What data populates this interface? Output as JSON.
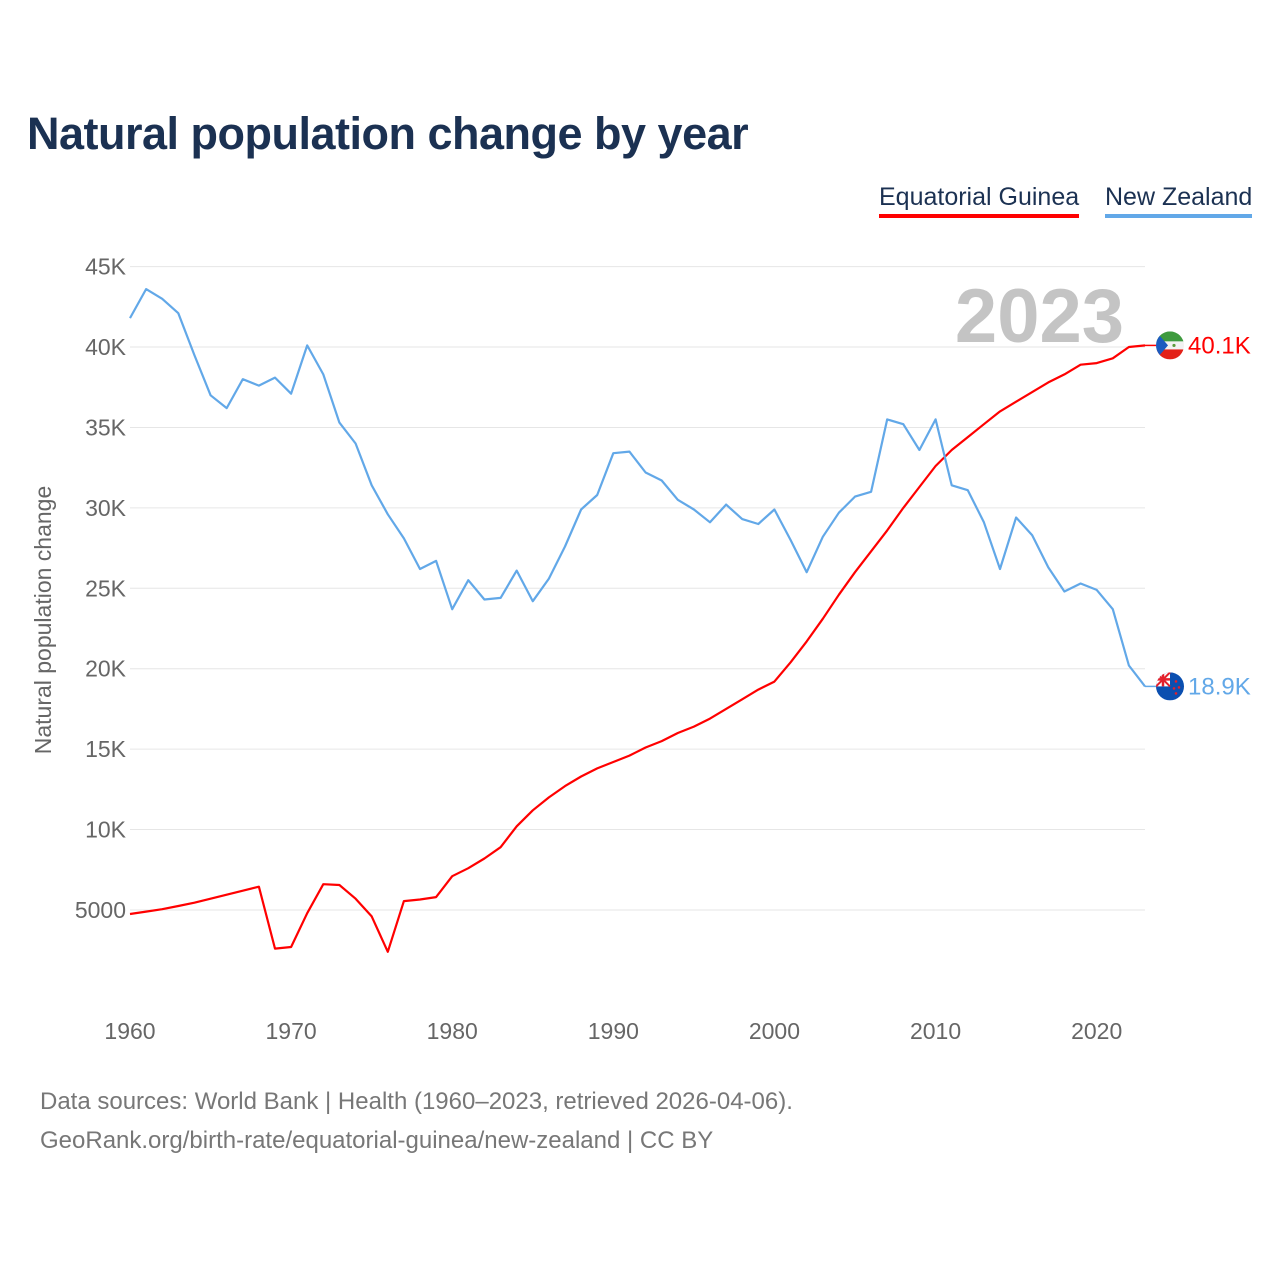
{
  "title": "Natural population change by year",
  "footer": {
    "line1": "Data sources: World Bank | Health (1960–2023, retrieved 2026-04-06).",
    "line2": "GeoRank.org/birth-rate/equatorial-guinea/new-zealand | CC BY"
  },
  "chart_data": {
    "type": "line",
    "title": "Natural population change by year",
    "xlabel": "",
    "ylabel": "Natural population change",
    "xlim": [
      1960,
      2023
    ],
    "ylim": [
      0,
      45000
    ],
    "grid": true,
    "legend_position": "top-right",
    "year_label": "2023",
    "x_ticks": [
      1960,
      1970,
      1980,
      1990,
      2000,
      2010,
      2020
    ],
    "x_tick_labels": [
      "1960",
      "1970",
      "1980",
      "1990",
      "2000",
      "2010",
      "2020"
    ],
    "y_ticks": [
      5000,
      10000,
      15000,
      20000,
      25000,
      30000,
      35000,
      40000,
      45000
    ],
    "y_tick_labels": [
      "5000",
      "10K",
      "15K",
      "20K",
      "25K",
      "30K",
      "35K",
      "40K",
      "45K"
    ],
    "x": [
      1960,
      1961,
      1962,
      1963,
      1964,
      1965,
      1966,
      1967,
      1968,
      1969,
      1970,
      1971,
      1972,
      1973,
      1974,
      1975,
      1976,
      1977,
      1978,
      1979,
      1980,
      1981,
      1982,
      1983,
      1984,
      1985,
      1986,
      1987,
      1988,
      1989,
      1990,
      1991,
      1992,
      1993,
      1994,
      1995,
      1996,
      1997,
      1998,
      1999,
      2000,
      2001,
      2002,
      2003,
      2004,
      2005,
      2006,
      2007,
      2008,
      2009,
      2010,
      2011,
      2012,
      2013,
      2014,
      2015,
      2016,
      2017,
      2018,
      2019,
      2020,
      2021,
      2022,
      2023
    ],
    "series": [
      {
        "name": "Equatorial Guinea",
        "color": "#ff0000",
        "end_label": "40.1K",
        "flag": "equatorial-guinea-flag",
        "values": [
          4750,
          4900,
          5050,
          5250,
          5450,
          5700,
          5950,
          6200,
          6450,
          2600,
          2700,
          4800,
          6600,
          6550,
          5700,
          4600,
          2400,
          5550,
          5650,
          5800,
          7100,
          7600,
          8200,
          8900,
          10200,
          11200,
          12000,
          12700,
          13300,
          13800,
          14200,
          14600,
          15100,
          15500,
          16000,
          16400,
          16900,
          17500,
          18100,
          18700,
          19200,
          20400,
          21700,
          23100,
          24600,
          26000,
          27300,
          28600,
          30000,
          31300,
          32600,
          33600,
          34400,
          35200,
          36000,
          36600,
          37200,
          37800,
          38300,
          38900,
          39000,
          39300,
          40000,
          40100
        ]
      },
      {
        "name": "New Zealand",
        "color": "#62a8e8",
        "end_label": "18.9K",
        "flag": "new-zealand-flag",
        "values": [
          41800,
          43600,
          43000,
          42100,
          39500,
          37000,
          36200,
          38000,
          37600,
          38100,
          37100,
          40100,
          38300,
          35300,
          34000,
          31400,
          29600,
          28100,
          26200,
          26700,
          23700,
          25500,
          24300,
          24400,
          26100,
          24200,
          25600,
          27600,
          29900,
          30800,
          33400,
          33500,
          32200,
          31700,
          30500,
          29900,
          29100,
          30200,
          29300,
          29000,
          29900,
          28000,
          26000,
          28200,
          29700,
          30700,
          31000,
          35500,
          35200,
          33600,
          35500,
          31400,
          31100,
          29100,
          26200,
          29400,
          28300,
          26300,
          24800,
          25300,
          24900,
          23700,
          20200,
          18900
        ]
      }
    ]
  }
}
